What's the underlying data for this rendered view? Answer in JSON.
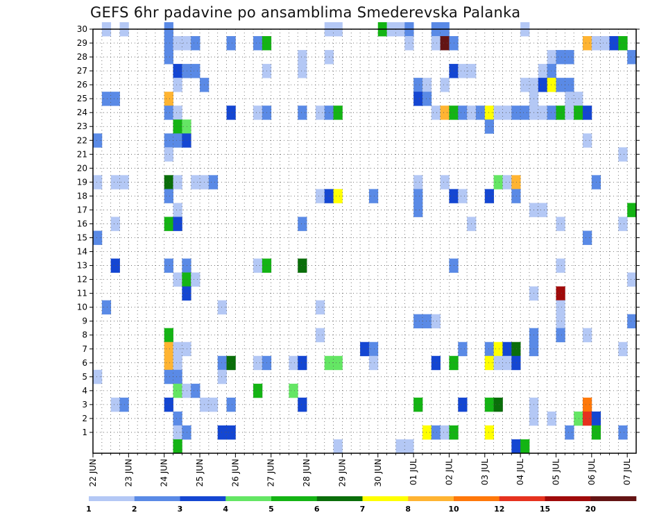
{
  "chart_data": {
    "type": "heatmap",
    "title": "GEFS 6hr padavine po ansamblima Smederevska Palanka",
    "y_ticks": [
      "1",
      "2",
      "3",
      "4",
      "5",
      "6",
      "7",
      "8",
      "9",
      "10",
      "11",
      "12",
      "13",
      "14",
      "15",
      "16",
      "17",
      "18",
      "19",
      "20",
      "21",
      "22",
      "23",
      "24",
      "25",
      "26",
      "27",
      "28",
      "29",
      "30"
    ],
    "x_ticks": [
      "22 JUN",
      "23 JUN",
      "24 JUN",
      "25 JUN",
      "26 JUN",
      "27 JUN",
      "28 JUN",
      "29 JUN",
      "30 JUN",
      "01 JUL",
      "02 JUL",
      "03 JUL",
      "04 JUL",
      "05 JUL",
      "06 JUL",
      "07 JUL"
    ],
    "color_levels": [
      "1",
      "2",
      "3",
      "4",
      "5",
      "6",
      "7",
      "8",
      "10",
      "12",
      "15",
      "20"
    ],
    "colors": [
      "#b4c8f5",
      "#5a8ae6",
      "#1446d2",
      "#64e664",
      "#14b414",
      "#0a6e0a",
      "#ffff00",
      "#ffb432",
      "#ff780a",
      "#e6321e",
      "#a00a0a",
      "#641414"
    ],
    "cells": [
      [
        1,
        30,
        1
      ],
      [
        3,
        30,
        1
      ],
      [
        8,
        30,
        2
      ],
      [
        26,
        30,
        1
      ],
      [
        27,
        30,
        1
      ],
      [
        32,
        30,
        5
      ],
      [
        33,
        30,
        1
      ],
      [
        34,
        30,
        1
      ],
      [
        35,
        30,
        2
      ],
      [
        38,
        30,
        2
      ],
      [
        39,
        30,
        2
      ],
      [
        48,
        30,
        1
      ],
      [
        8,
        29,
        2
      ],
      [
        9,
        29,
        1
      ],
      [
        10,
        29,
        1
      ],
      [
        11,
        29,
        2
      ],
      [
        15,
        29,
        2
      ],
      [
        18,
        29,
        2
      ],
      [
        19,
        29,
        5
      ],
      [
        35,
        29,
        1
      ],
      [
        38,
        29,
        1
      ],
      [
        39,
        29,
        12
      ],
      [
        40,
        29,
        2
      ],
      [
        55,
        29,
        8
      ],
      [
        56,
        29,
        1
      ],
      [
        57,
        29,
        1
      ],
      [
        58,
        29,
        3
      ],
      [
        59,
        29,
        5
      ],
      [
        8,
        28,
        2
      ],
      [
        23,
        28,
        1
      ],
      [
        26,
        28,
        1
      ],
      [
        51,
        28,
        1
      ],
      [
        52,
        28,
        2
      ],
      [
        53,
        28,
        2
      ],
      [
        60,
        28,
        2
      ],
      [
        9,
        27,
        3
      ],
      [
        10,
        27,
        2
      ],
      [
        11,
        27,
        2
      ],
      [
        19,
        27,
        1
      ],
      [
        23,
        27,
        1
      ],
      [
        40,
        27,
        3
      ],
      [
        41,
        27,
        1
      ],
      [
        42,
        27,
        1
      ],
      [
        50,
        27,
        1
      ],
      [
        51,
        27,
        2
      ],
      [
        9,
        26,
        1
      ],
      [
        12,
        26,
        2
      ],
      [
        36,
        26,
        2
      ],
      [
        37,
        26,
        1
      ],
      [
        39,
        26,
        1
      ],
      [
        48,
        26,
        1
      ],
      [
        49,
        26,
        1
      ],
      [
        50,
        26,
        3
      ],
      [
        51,
        26,
        7
      ],
      [
        52,
        26,
        2
      ],
      [
        53,
        26,
        2
      ],
      [
        1,
        25,
        2
      ],
      [
        2,
        25,
        2
      ],
      [
        8,
        25,
        8
      ],
      [
        36,
        25,
        3
      ],
      [
        37,
        25,
        2
      ],
      [
        49,
        25,
        1
      ],
      [
        53,
        25,
        1
      ],
      [
        54,
        25,
        1
      ],
      [
        8,
        24,
        2
      ],
      [
        9,
        24,
        1
      ],
      [
        15,
        24,
        3
      ],
      [
        18,
        24,
        1
      ],
      [
        19,
        24,
        2
      ],
      [
        23,
        24,
        2
      ],
      [
        25,
        24,
        1
      ],
      [
        26,
        24,
        2
      ],
      [
        27,
        24,
        5
      ],
      [
        38,
        24,
        1
      ],
      [
        39,
        24,
        8
      ],
      [
        40,
        24,
        5
      ],
      [
        41,
        24,
        2
      ],
      [
        42,
        24,
        1
      ],
      [
        43,
        24,
        2
      ],
      [
        44,
        24,
        7
      ],
      [
        45,
        24,
        1
      ],
      [
        46,
        24,
        1
      ],
      [
        47,
        24,
        2
      ],
      [
        48,
        24,
        2
      ],
      [
        49,
        24,
        1
      ],
      [
        50,
        24,
        1
      ],
      [
        51,
        24,
        2
      ],
      [
        52,
        24,
        5
      ],
      [
        53,
        24,
        1
      ],
      [
        54,
        24,
        5
      ],
      [
        55,
        24,
        3
      ],
      [
        9,
        23,
        5
      ],
      [
        10,
        23,
        4
      ],
      [
        44,
        23,
        2
      ],
      [
        0,
        22,
        2
      ],
      [
        8,
        22,
        2
      ],
      [
        9,
        22,
        2
      ],
      [
        10,
        22,
        3
      ],
      [
        55,
        22,
        1
      ],
      [
        8,
        21,
        1
      ],
      [
        59,
        21,
        1
      ],
      [
        0,
        19,
        1
      ],
      [
        2,
        19,
        1
      ],
      [
        3,
        19,
        1
      ],
      [
        8,
        19,
        6
      ],
      [
        9,
        19,
        1
      ],
      [
        11,
        19,
        1
      ],
      [
        12,
        19,
        1
      ],
      [
        13,
        19,
        2
      ],
      [
        36,
        19,
        1
      ],
      [
        39,
        19,
        1
      ],
      [
        45,
        19,
        4
      ],
      [
        46,
        19,
        1
      ],
      [
        47,
        19,
        8
      ],
      [
        56,
        19,
        2
      ],
      [
        8,
        18,
        2
      ],
      [
        25,
        18,
        1
      ],
      [
        26,
        18,
        3
      ],
      [
        27,
        18,
        7
      ],
      [
        31,
        18,
        2
      ],
      [
        36,
        18,
        2
      ],
      [
        40,
        18,
        3
      ],
      [
        41,
        18,
        1
      ],
      [
        44,
        18,
        3
      ],
      [
        47,
        18,
        2
      ],
      [
        9,
        17,
        1
      ],
      [
        36,
        17,
        2
      ],
      [
        49,
        17,
        1
      ],
      [
        50,
        17,
        1
      ],
      [
        60,
        17,
        5
      ],
      [
        2,
        16,
        1
      ],
      [
        8,
        16,
        5
      ],
      [
        9,
        16,
        3
      ],
      [
        23,
        16,
        2
      ],
      [
        42,
        16,
        1
      ],
      [
        52,
        16,
        1
      ],
      [
        59,
        16,
        1
      ],
      [
        0,
        15,
        2
      ],
      [
        55,
        15,
        2
      ],
      [
        2,
        13,
        3
      ],
      [
        8,
        13,
        2
      ],
      [
        10,
        13,
        2
      ],
      [
        18,
        13,
        1
      ],
      [
        19,
        13,
        5
      ],
      [
        23,
        13,
        6
      ],
      [
        40,
        13,
        2
      ],
      [
        52,
        13,
        1
      ],
      [
        9,
        12,
        1
      ],
      [
        10,
        12,
        5
      ],
      [
        11,
        12,
        1
      ],
      [
        60,
        12,
        1
      ],
      [
        10,
        11,
        3
      ],
      [
        49,
        11,
        1
      ],
      [
        52,
        11,
        11
      ],
      [
        1,
        10,
        2
      ],
      [
        14,
        10,
        1
      ],
      [
        25,
        10,
        1
      ],
      [
        52,
        10,
        1
      ],
      [
        36,
        9,
        2
      ],
      [
        37,
        9,
        2
      ],
      [
        38,
        9,
        1
      ],
      [
        52,
        9,
        1
      ],
      [
        60,
        9,
        2
      ],
      [
        8,
        8,
        5
      ],
      [
        25,
        8,
        1
      ],
      [
        49,
        8,
        2
      ],
      [
        52,
        8,
        2
      ],
      [
        55,
        8,
        1
      ],
      [
        8,
        7,
        8
      ],
      [
        9,
        7,
        1
      ],
      [
        10,
        7,
        1
      ],
      [
        30,
        7,
        3
      ],
      [
        31,
        7,
        2
      ],
      [
        41,
        7,
        2
      ],
      [
        44,
        7,
        2
      ],
      [
        45,
        7,
        7
      ],
      [
        46,
        7,
        3
      ],
      [
        47,
        7,
        6
      ],
      [
        49,
        7,
        2
      ],
      [
        59,
        7,
        1
      ],
      [
        8,
        6,
        8
      ],
      [
        9,
        6,
        1
      ],
      [
        14,
        6,
        2
      ],
      [
        15,
        6,
        6
      ],
      [
        18,
        6,
        1
      ],
      [
        19,
        6,
        2
      ],
      [
        22,
        6,
        1
      ],
      [
        23,
        6,
        3
      ],
      [
        26,
        6,
        4
      ],
      [
        27,
        6,
        4
      ],
      [
        31,
        6,
        1
      ],
      [
        38,
        6,
        3
      ],
      [
        40,
        6,
        5
      ],
      [
        44,
        6,
        7
      ],
      [
        45,
        6,
        1
      ],
      [
        46,
        6,
        1
      ],
      [
        47,
        6,
        3
      ],
      [
        0,
        5,
        1
      ],
      [
        8,
        5,
        2
      ],
      [
        9,
        5,
        2
      ],
      [
        14,
        5,
        1
      ],
      [
        9,
        4,
        4
      ],
      [
        10,
        4,
        1
      ],
      [
        11,
        4,
        2
      ],
      [
        18,
        4,
        5
      ],
      [
        22,
        4,
        4
      ],
      [
        2,
        3,
        1
      ],
      [
        3,
        3,
        2
      ],
      [
        8,
        3,
        3
      ],
      [
        12,
        3,
        1
      ],
      [
        13,
        3,
        1
      ],
      [
        15,
        3,
        2
      ],
      [
        23,
        3,
        3
      ],
      [
        36,
        3,
        5
      ],
      [
        41,
        3,
        3
      ],
      [
        44,
        3,
        5
      ],
      [
        45,
        3,
        6
      ],
      [
        49,
        3,
        1
      ],
      [
        55,
        3,
        9
      ],
      [
        9,
        2,
        2
      ],
      [
        49,
        2,
        1
      ],
      [
        51,
        2,
        1
      ],
      [
        54,
        2,
        4
      ],
      [
        55,
        2,
        10
      ],
      [
        56,
        2,
        3
      ],
      [
        9,
        1,
        1
      ],
      [
        10,
        1,
        2
      ],
      [
        14,
        1,
        3
      ],
      [
        15,
        1,
        3
      ],
      [
        37,
        1,
        7
      ],
      [
        38,
        1,
        2
      ],
      [
        39,
        1,
        1
      ],
      [
        40,
        1,
        5
      ],
      [
        44,
        1,
        7
      ],
      [
        53,
        1,
        2
      ],
      [
        56,
        1,
        5
      ],
      [
        59,
        1,
        2
      ],
      [
        9,
        0,
        5
      ],
      [
        27,
        0,
        1
      ],
      [
        34,
        0,
        1
      ],
      [
        35,
        0,
        1
      ],
      [
        47,
        0,
        3
      ],
      [
        48,
        0,
        5
      ]
    ]
  }
}
